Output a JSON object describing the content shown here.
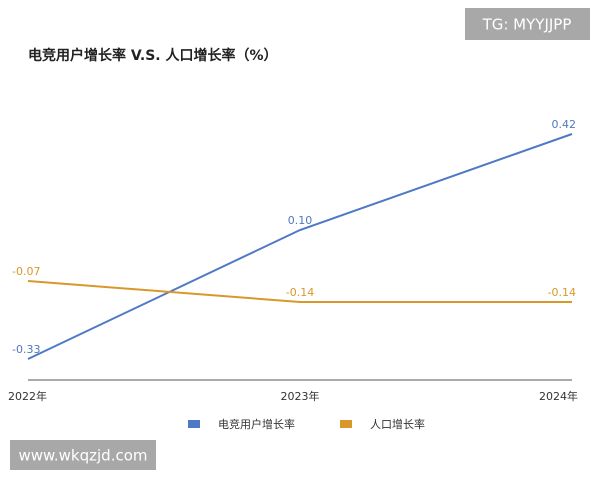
{
  "chart_data": {
    "type": "line",
    "title": "电竞用户增长率 V.S. 人口增长率（%）",
    "categories": [
      "2022年",
      "2023年",
      "2024年"
    ],
    "series": [
      {
        "name": "电竞用户增长率",
        "color": "#4e79c4",
        "values": [
          -0.33,
          0.1,
          0.42
        ],
        "value_labels": [
          "-0.33",
          "0.10",
          "0.42"
        ]
      },
      {
        "name": "人口增长率",
        "color": "#d9982a",
        "values": [
          -0.07,
          -0.14,
          -0.14
        ]
      }
    ],
    "ylim": [
      -0.4,
      0.5
    ],
    "legend": "bottom"
  },
  "watermarks": [
    "TG: MYYJJPP",
    "www.wkqzjd.com"
  ]
}
